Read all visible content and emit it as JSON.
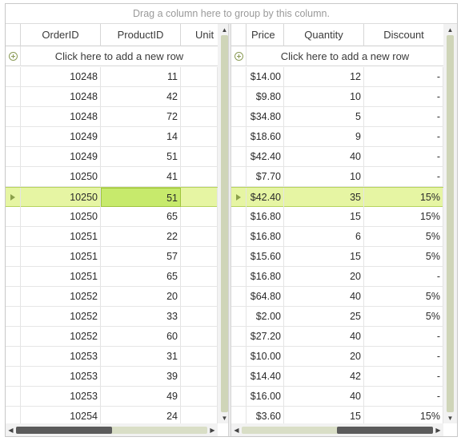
{
  "group_panel_text": "Drag a column here to group by this column.",
  "new_row_text": "Click here to add a new row",
  "left_columns": [
    "OrderID",
    "ProductID",
    "Unit"
  ],
  "right_columns": [
    "Price",
    "Quantity",
    "Discount"
  ],
  "selected_row_index": 6,
  "rows": [
    {
      "order_id": "10248",
      "product_id": "11",
      "price": "$14.00",
      "quantity": "12",
      "discount": "-"
    },
    {
      "order_id": "10248",
      "product_id": "42",
      "price": "$9.80",
      "quantity": "10",
      "discount": "-"
    },
    {
      "order_id": "10248",
      "product_id": "72",
      "price": "$34.80",
      "quantity": "5",
      "discount": "-"
    },
    {
      "order_id": "10249",
      "product_id": "14",
      "price": "$18.60",
      "quantity": "9",
      "discount": "-"
    },
    {
      "order_id": "10249",
      "product_id": "51",
      "price": "$42.40",
      "quantity": "40",
      "discount": "-"
    },
    {
      "order_id": "10250",
      "product_id": "41",
      "price": "$7.70",
      "quantity": "10",
      "discount": "-"
    },
    {
      "order_id": "10250",
      "product_id": "51",
      "price": "$42.40",
      "quantity": "35",
      "discount": "15%"
    },
    {
      "order_id": "10250",
      "product_id": "65",
      "price": "$16.80",
      "quantity": "15",
      "discount": "15%"
    },
    {
      "order_id": "10251",
      "product_id": "22",
      "price": "$16.80",
      "quantity": "6",
      "discount": "5%"
    },
    {
      "order_id": "10251",
      "product_id": "57",
      "price": "$15.60",
      "quantity": "15",
      "discount": "5%"
    },
    {
      "order_id": "10251",
      "product_id": "65",
      "price": "$16.80",
      "quantity": "20",
      "discount": "-"
    },
    {
      "order_id": "10252",
      "product_id": "20",
      "price": "$64.80",
      "quantity": "40",
      "discount": "5%"
    },
    {
      "order_id": "10252",
      "product_id": "33",
      "price": "$2.00",
      "quantity": "25",
      "discount": "5%"
    },
    {
      "order_id": "10252",
      "product_id": "60",
      "price": "$27.20",
      "quantity": "40",
      "discount": "-"
    },
    {
      "order_id": "10253",
      "product_id": "31",
      "price": "$10.00",
      "quantity": "20",
      "discount": "-"
    },
    {
      "order_id": "10253",
      "product_id": "39",
      "price": "$14.40",
      "quantity": "42",
      "discount": "-"
    },
    {
      "order_id": "10253",
      "product_id": "49",
      "price": "$16.00",
      "quantity": "40",
      "discount": "-"
    },
    {
      "order_id": "10254",
      "product_id": "24",
      "price": "$3.60",
      "quantity": "15",
      "discount": "15%"
    }
  ],
  "icons": {
    "add_row": "plus-circle-icon",
    "current_row": "row-indicator-arrow-icon",
    "scroll_up": "arrow-up-icon",
    "scroll_down": "arrow-down-icon",
    "scroll_left": "arrow-left-icon",
    "scroll_right": "arrow-right-icon"
  },
  "colors": {
    "selected_row": "#e6f5a3",
    "current_cell": "#c7ea6c",
    "accent": "#8ba04a"
  }
}
